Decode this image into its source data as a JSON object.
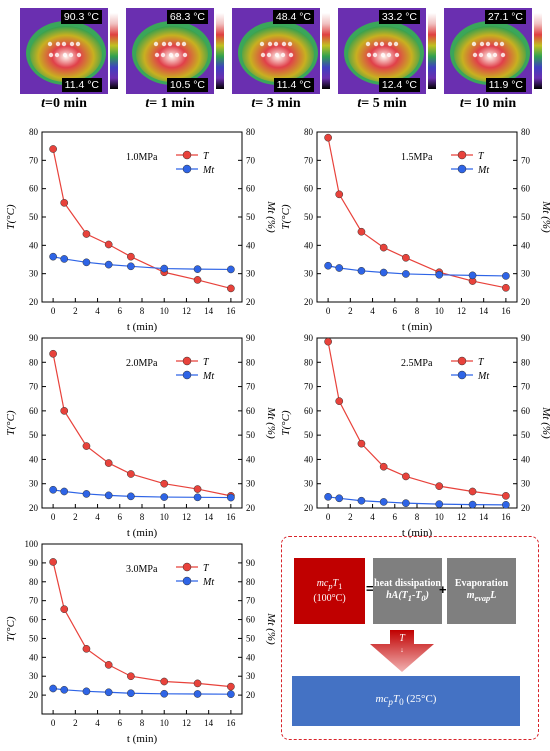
{
  "thermal": {
    "panels": [
      {
        "max": "90.3 °C",
        "min": "11.4 °C",
        "time": "0 min"
      },
      {
        "max": "68.3 °C",
        "min": "10.5 °C",
        "time": " 1 min"
      },
      {
        "max": "48.4 °C",
        "min": "11.4 °C",
        "time": " 3 min"
      },
      {
        "max": "33.2 °C",
        "min": "12.4 °C",
        "time": " 5 min"
      },
      {
        "max": "27.1 °C",
        "min": "11.9 °C",
        "time": " 10 min"
      }
    ],
    "time_prefix": "t",
    "time_eq": "="
  },
  "chart_data": [
    {
      "type": "line",
      "annotation": "1.0MPa",
      "xlabel": "t (min)",
      "ylabel_left": "T(°C)",
      "ylabel_right": "Mt (%)",
      "x": [
        0,
        1,
        3,
        5,
        7,
        10,
        13,
        16
      ],
      "xticks": [
        0,
        2,
        4,
        6,
        8,
        10,
        12,
        14,
        16
      ],
      "xlim": [
        -1,
        17
      ],
      "ylim_left": [
        20,
        80
      ],
      "ylim_right": [
        20,
        80
      ],
      "yticks": [
        20,
        30,
        40,
        50,
        60,
        70,
        80
      ],
      "series": [
        {
          "name": "T",
          "color": "#e8423b",
          "values": [
            74,
            55,
            44,
            40.3,
            36,
            30.5,
            27.8,
            24.8
          ]
        },
        {
          "name": "Mt",
          "color": "#2e64e6",
          "values": [
            36,
            35.2,
            34,
            33.2,
            32.6,
            31.8,
            31.6,
            31.5
          ]
        }
      ]
    },
    {
      "type": "line",
      "annotation": "1.5MPa",
      "xlabel": "t (min)",
      "ylabel_left": "T(°C)",
      "ylabel_right": "Mt (%)",
      "x": [
        0,
        1,
        3,
        5,
        7,
        10,
        13,
        16
      ],
      "xticks": [
        0,
        2,
        4,
        6,
        8,
        10,
        12,
        14,
        16
      ],
      "xlim": [
        -1,
        17
      ],
      "ylim_left": [
        20,
        80
      ],
      "ylim_right": [
        20,
        80
      ],
      "yticks": [
        20,
        30,
        40,
        50,
        60,
        70,
        80
      ],
      "series": [
        {
          "name": "T",
          "color": "#e8423b",
          "values": [
            78,
            58,
            44.8,
            39.2,
            35.6,
            30.5,
            27.4,
            25
          ]
        },
        {
          "name": "Mt",
          "color": "#2e64e6",
          "values": [
            32.8,
            32,
            31,
            30.4,
            29.9,
            29.6,
            29.4,
            29.2
          ]
        }
      ]
    },
    {
      "type": "line",
      "annotation": "2.0MPa",
      "xlabel": "t (min)",
      "ylabel_left": "T(°C)",
      "ylabel_right": "Mt (%)",
      "x": [
        0,
        1,
        3,
        5,
        7,
        10,
        13,
        16
      ],
      "xticks": [
        0,
        2,
        4,
        6,
        8,
        10,
        12,
        14,
        16
      ],
      "xlim": [
        -1,
        17
      ],
      "ylim_left": [
        20,
        90
      ],
      "ylim_right": [
        20,
        90
      ],
      "yticks": [
        20,
        30,
        40,
        50,
        60,
        70,
        80,
        90
      ],
      "series": [
        {
          "name": "T",
          "color": "#e8423b",
          "values": [
            83.5,
            60,
            45.5,
            38.5,
            34,
            30,
            27.8,
            25
          ]
        },
        {
          "name": "Mt",
          "color": "#2e64e6",
          "values": [
            27.5,
            26.8,
            25.8,
            25.2,
            24.8,
            24.5,
            24.4,
            24.3
          ]
        }
      ]
    },
    {
      "type": "line",
      "annotation": "2.5MPa",
      "xlabel": "t (min)",
      "ylabel_left": "T(°C)",
      "ylabel_right": "Mt (%)",
      "x": [
        0,
        1,
        3,
        5,
        7,
        10,
        13,
        16
      ],
      "xticks": [
        0,
        2,
        4,
        6,
        8,
        10,
        12,
        14,
        16
      ],
      "xlim": [
        -1,
        17
      ],
      "ylim_left": [
        20,
        90
      ],
      "ylim_right": [
        20,
        90
      ],
      "yticks": [
        20,
        30,
        40,
        50,
        60,
        70,
        80,
        90
      ],
      "series": [
        {
          "name": "T",
          "color": "#e8423b",
          "values": [
            88.5,
            64,
            46.5,
            37,
            33,
            29,
            26.8,
            25
          ]
        },
        {
          "name": "Mt",
          "color": "#2e64e6",
          "values": [
            24.6,
            24,
            23,
            22.5,
            22,
            21.6,
            21.4,
            21.3
          ]
        }
      ]
    },
    {
      "type": "line",
      "annotation": "3.0MPa",
      "xlabel": "t (min)",
      "ylabel_left": "T(°C)",
      "ylabel_right": "Mt (%)",
      "x": [
        0,
        1,
        3,
        5,
        7,
        10,
        13,
        16
      ],
      "xticks": [
        0,
        2,
        4,
        6,
        8,
        10,
        12,
        14,
        16
      ],
      "xlim": [
        -1,
        17
      ],
      "ylim_left": [
        10,
        100
      ],
      "ylim_right": [
        10,
        100
      ],
      "yticks": [
        20,
        30,
        40,
        50,
        60,
        70,
        80,
        90,
        100
      ],
      "yticks_right": [
        20,
        30,
        40,
        50,
        60,
        70,
        80,
        90
      ],
      "series": [
        {
          "name": "T",
          "color": "#e8423b",
          "values": [
            90.5,
            65.5,
            44.5,
            36,
            30,
            27.2,
            26.2,
            24.5
          ]
        },
        {
          "name": "Mt",
          "color": "#2e64e6",
          "values": [
            23.5,
            22.8,
            22,
            21.5,
            21,
            20.7,
            20.6,
            20.5
          ]
        }
      ]
    }
  ],
  "diagram": {
    "box1": [
      "mc",
      "p",
      "T",
      "1",
      "(100°C)"
    ],
    "equals": "=",
    "box2": [
      "heat dissipation",
      "hA(T",
      "1",
      "-T",
      "0",
      ")"
    ],
    "plus": "+",
    "box3": [
      "Evaporation",
      "m",
      "evap",
      "L"
    ],
    "arrow": [
      "T",
      "↓"
    ],
    "box4": [
      "mc",
      "p",
      "T",
      "0",
      "(25°C)"
    ],
    "colors": {
      "red": "#c00000",
      "gray": "#7f7f7f",
      "blue": "#4472c4",
      "border": "#d8232a"
    }
  }
}
